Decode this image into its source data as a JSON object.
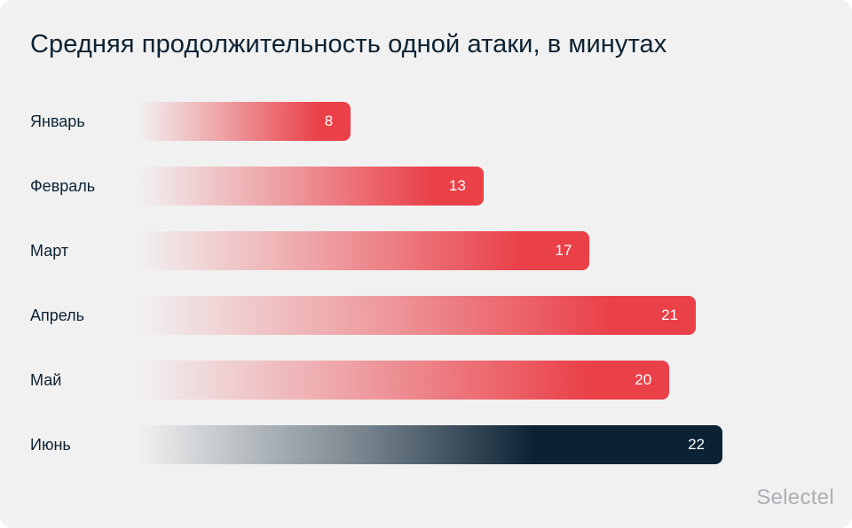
{
  "chart_data": {
    "type": "bar",
    "orientation": "horizontal",
    "title": "Средняя продолжительность одной атаки, в минутах",
    "categories": [
      "Январь",
      "Февраль",
      "Март",
      "Апрель",
      "Май",
      "Июнь"
    ],
    "values": [
      8,
      13,
      17,
      21,
      20,
      22
    ],
    "highlight_index": 5,
    "colors": {
      "bar": "#ea4048",
      "highlight": "#0b2234"
    },
    "xlim": [
      0,
      22
    ],
    "grid": false,
    "legend": false
  },
  "brand": {
    "logo_text": "Selectel"
  }
}
